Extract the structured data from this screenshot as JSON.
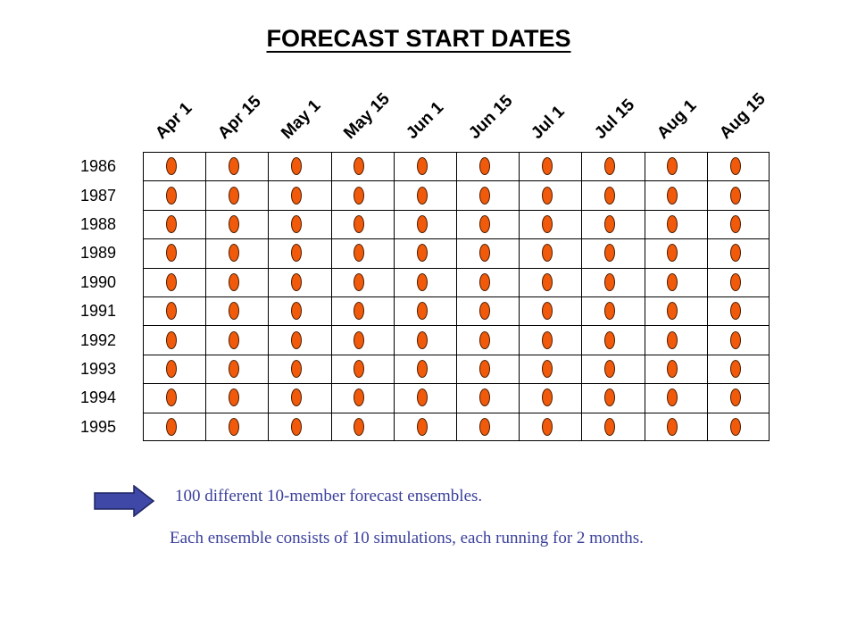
{
  "title": "FORECAST START DATES",
  "columns": [
    "Apr 1",
    "Apr 15",
    "May 1",
    "May 15",
    "Jun 1",
    "Jun 15",
    "Jul 1",
    "Jul 15",
    "Aug 1",
    "Aug 15"
  ],
  "rows": [
    "1986",
    "1987",
    "1988",
    "1989",
    "1990",
    "1991",
    "1992",
    "1993",
    "1994",
    "1995"
  ],
  "colors": {
    "dot_fill": "#f05a0a",
    "arrow_fill": "#3f48a6",
    "note_text": "#3a3f9a"
  },
  "arrow_icon": "right-arrow-icon",
  "notes": {
    "line1": "100 different 10-member forecast ensembles.",
    "line2": "Each ensemble consists of 10 simulations, each running for 2 months."
  }
}
